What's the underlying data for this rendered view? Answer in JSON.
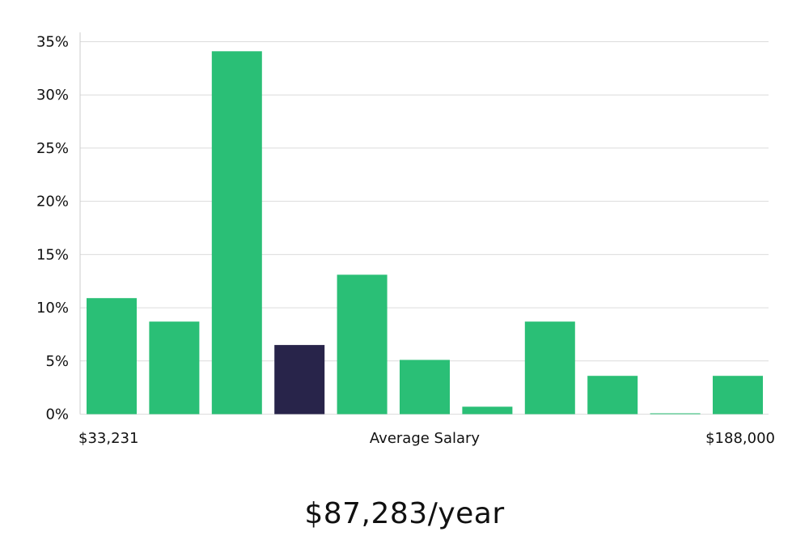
{
  "chart_data": {
    "type": "bar",
    "title": "",
    "xlabel": "Average Salary",
    "ylabel": "",
    "x_min_label": "$33,231",
    "x_max_label": "$188,000",
    "ylim": [
      0,
      35
    ],
    "y_ticks": [
      0,
      5,
      10,
      15,
      20,
      25,
      30,
      35
    ],
    "y_tick_labels": [
      "0%",
      "5%",
      "10%",
      "15%",
      "20%",
      "25%",
      "30%",
      "35%"
    ],
    "values": [
      10.9,
      8.7,
      34.1,
      6.5,
      13.1,
      5.1,
      0.7,
      8.7,
      3.6,
      0.05,
      3.6
    ],
    "highlight_index": 3,
    "grid": true,
    "colors": {
      "bar": "#2abf76",
      "highlight": "#28244a",
      "grid": "#dcdcdc",
      "axis": "#cccccc"
    }
  },
  "summary": {
    "average_salary_label": "$87,283/year"
  }
}
